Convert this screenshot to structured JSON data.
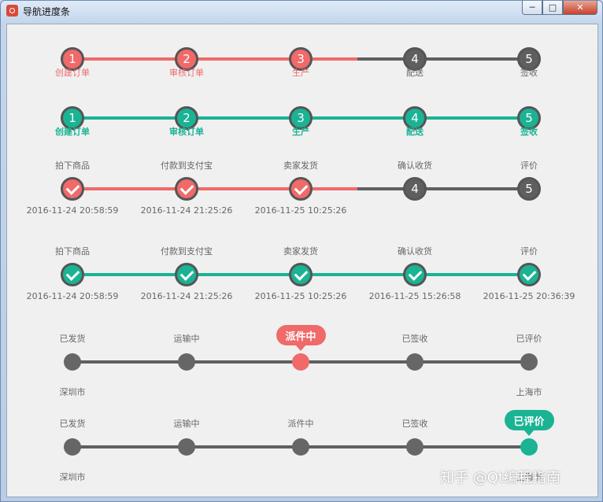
{
  "window": {
    "title": "导航进度条"
  },
  "colors": {
    "red": "#f06a6a",
    "green": "#1ab394",
    "gray": "#5f5f5f",
    "text_gray": "#666666"
  },
  "steps_a": [
    "创建订单",
    "审核订单",
    "生产",
    "配送",
    "签收"
  ],
  "steps_b": [
    "拍下商品",
    "付款到支付宝",
    "卖家发货",
    "确认收货",
    "评价"
  ],
  "steps_c": [
    "已发货",
    "运输中",
    "派件中",
    "已签收",
    "已评价"
  ],
  "progress1": {
    "numbers": [
      "1",
      "2",
      "3",
      "4",
      "5"
    ],
    "completed": 3,
    "labels_ref": "steps_a"
  },
  "progress2": {
    "numbers": [
      "1",
      "2",
      "3",
      "4",
      "5"
    ],
    "completed": 5
  },
  "progress3": {
    "numbers": [
      "",
      "",
      "",
      "4",
      "5"
    ],
    "completed": 3,
    "times": [
      "2016-11-24 20:58:59",
      "2016-11-24 21:25:26",
      "2016-11-25 10:25:26"
    ]
  },
  "progress4": {
    "completed": 5,
    "times": [
      "2016-11-24 20:58:59",
      "2016-11-24 21:25:26",
      "2016-11-25 10:25:26",
      "2016-11-25 15:26:58",
      "2016-11-25 20:36:39"
    ]
  },
  "progress5": {
    "current": 3,
    "bubble": "派件中",
    "start_city": "深圳市",
    "end_city": "上海市"
  },
  "progress6": {
    "current": 5,
    "bubble": "已评价",
    "start_city": "深圳市",
    "end_city": "上海市"
  },
  "watermark": "知乎 @Qt编程指南"
}
